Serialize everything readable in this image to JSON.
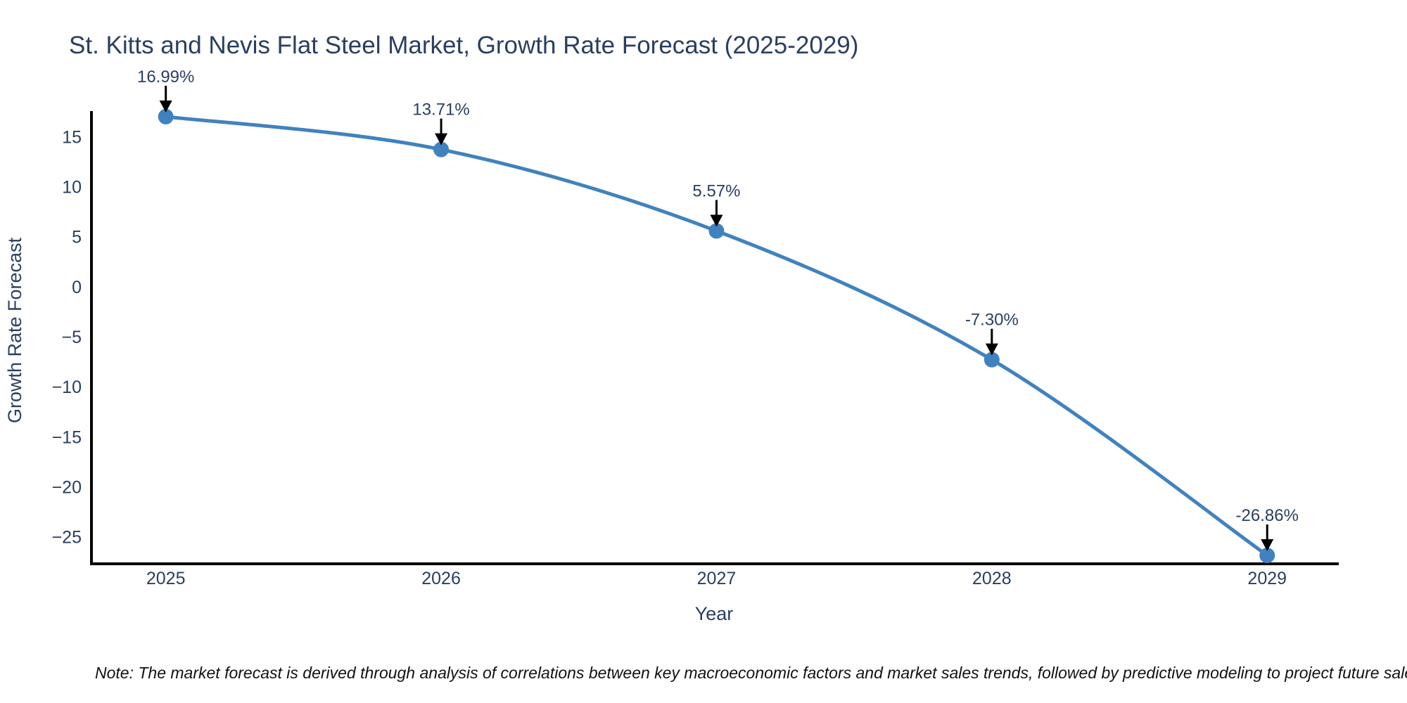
{
  "chart_data": {
    "type": "line",
    "title": "St. Kitts and Nevis Flat Steel Market, Growth Rate Forecast (2025-2029)",
    "xlabel": "Year",
    "ylabel": "Growth Rate Forecast",
    "x": [
      2025,
      2026,
      2027,
      2028,
      2029
    ],
    "y": [
      16.99,
      13.71,
      5.57,
      -7.3,
      -26.86
    ],
    "point_labels": [
      "16.99%",
      "13.71%",
      "5.57%",
      "-7.30%",
      "-26.86%"
    ],
    "xtick_labels": [
      "2025",
      "2026",
      "2027",
      "2028",
      "2029"
    ],
    "yticks": [
      15,
      10,
      5,
      0,
      -5,
      -10,
      -15,
      -20,
      -25
    ],
    "xlim": [
      2024.73,
      2029.26
    ],
    "ylim": [
      -27.7,
      17.55
    ],
    "grid": false,
    "legend": "none",
    "line_shape": "spline",
    "line_color": "#4182be",
    "marker_color": "#4182be",
    "arrow_color": "#000000",
    "axis_line_color": "#000000",
    "text_color": "#2a3f5f",
    "note": "Note: The market forecast is derived through analysis of correlations between key macroeconomic factors and market sales trends, followed by predictive modeling to project future sales"
  }
}
